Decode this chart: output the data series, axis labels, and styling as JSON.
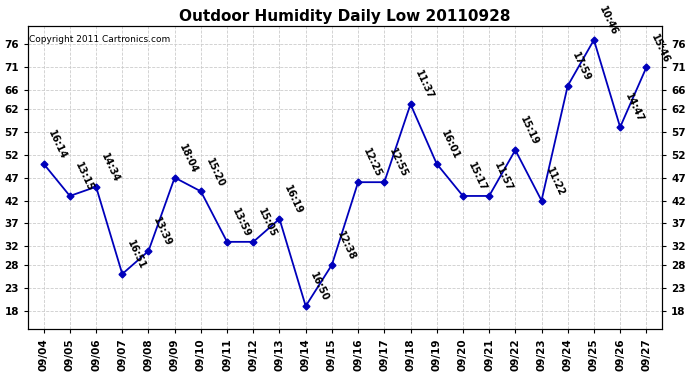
{
  "title": "Outdoor Humidity Daily Low 20110928",
  "copyright": "Copyright 2011 Cartronics.com",
  "dates": [
    "09/04",
    "09/05",
    "09/06",
    "09/07",
    "09/08",
    "09/09",
    "09/10",
    "09/11",
    "09/12",
    "09/13",
    "09/14",
    "09/15",
    "09/16",
    "09/17",
    "09/18",
    "09/19",
    "09/20",
    "09/21",
    "09/22",
    "09/23",
    "09/24",
    "09/25",
    "09/26",
    "09/27"
  ],
  "values": [
    50,
    43,
    45,
    26,
    31,
    47,
    44,
    33,
    33,
    38,
    19,
    28,
    46,
    46,
    63,
    50,
    43,
    43,
    53,
    42,
    67,
    77,
    58,
    71
  ],
  "time_labels": [
    "16:14",
    "13:15",
    "14:34",
    "16:51",
    "13:39",
    "18:04",
    "15:20",
    "13:59",
    "15:05",
    "16:19",
    "16:50",
    "12:38",
    "12:25",
    "12:55",
    "11:37",
    "16:01",
    "15:17",
    "11:57",
    "15:19",
    "11:22",
    "17:59",
    "10:46",
    "14:47",
    "15:46"
  ],
  "yticks": [
    18,
    23,
    28,
    32,
    37,
    42,
    47,
    52,
    57,
    62,
    66,
    71,
    76
  ],
  "ylim": [
    14,
    80
  ],
  "line_color": "#0000bb",
  "bg_color": "#ffffff",
  "grid_color": "#cccccc",
  "title_fontsize": 11,
  "label_fontsize": 7,
  "tick_fontsize": 7.5,
  "copyright_fontsize": 6.5,
  "label_rotation": -65,
  "figwidth": 6.9,
  "figheight": 3.75,
  "dpi": 100
}
